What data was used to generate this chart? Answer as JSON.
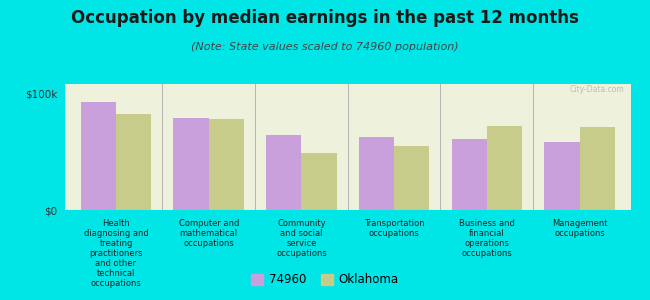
{
  "title": "Occupation by median earnings in the past 12 months",
  "subtitle": "(Note: State values scaled to 74960 population)",
  "background_color": "#00e5e5",
  "plot_bg_color": "#eef2dc",
  "categories": [
    "Health\ndiagnosing and\ntreating\npractitioners\nand other\ntechnical\noccupations",
    "Computer and\nmathematical\noccupations",
    "Community\nand social\nservice\noccupations",
    "Transportation\noccupations",
    "Business and\nfinancial\noperations\noccupations",
    "Management\noccupations"
  ],
  "values_74960": [
    93000,
    79000,
    64000,
    63000,
    61000,
    58000
  ],
  "values_oklahoma": [
    82000,
    78000,
    49000,
    55000,
    72000,
    71000
  ],
  "bar_color_74960": "#c9a0dc",
  "bar_color_oklahoma": "#c8cc8a",
  "ylim": [
    0,
    108000
  ],
  "ytick_labels": [
    "$0",
    "$100k"
  ],
  "ytick_vals": [
    0,
    100000
  ],
  "legend_label_74960": "74960",
  "legend_label_oklahoma": "Oklahoma",
  "bar_width": 0.38,
  "title_fontsize": 12,
  "subtitle_fontsize": 8,
  "tick_fontsize": 7.5,
  "legend_fontsize": 8.5
}
